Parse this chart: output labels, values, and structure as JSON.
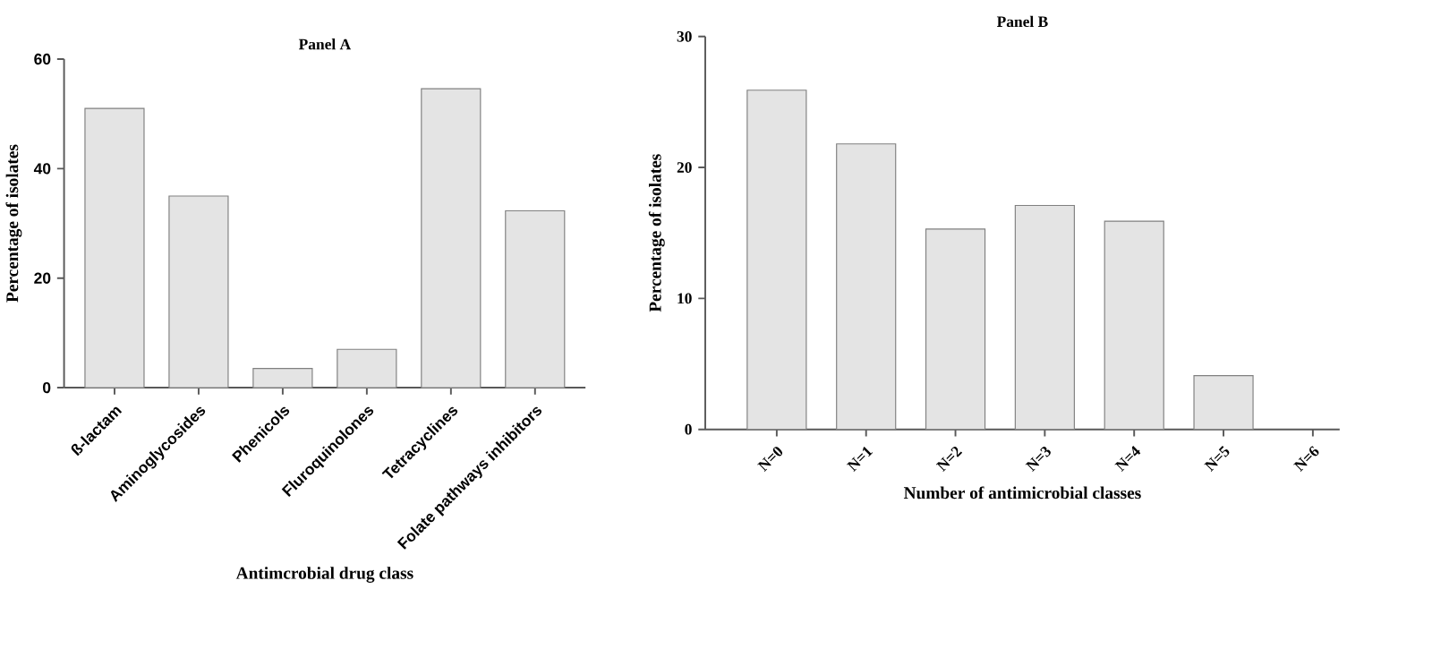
{
  "chart_data": [
    {
      "type": "bar",
      "title": "Panel A",
      "xlabel": "Antimcrobial drug class",
      "ylabel": "Percentage of isolates",
      "categories": [
        "ß-lactam",
        "Aminoglycosides",
        "Phenicols",
        "Fluroquinolones",
        "Tetracyclines",
        "Folate pathways inhibitors"
      ],
      "values": [
        51,
        35,
        3.5,
        7,
        54.6,
        32.3
      ],
      "color": "#e4e4e4",
      "ylim": [
        0,
        60
      ],
      "yticks": [
        0,
        20,
        40,
        60
      ]
    },
    {
      "type": "bar",
      "title": "Panel B",
      "xlabel": "Number of antimicrobial classes",
      "ylabel": "Percentage of isolates",
      "categories": [
        "N=0",
        "N=1",
        "N=2",
        "N=3",
        "N=4",
        "N=5",
        "N=6"
      ],
      "values": [
        25.9,
        21.8,
        15.3,
        17.1,
        15.9,
        4.1,
        0
      ],
      "color": "#e4e4e4",
      "ylim": [
        0,
        30
      ],
      "yticks": [
        0,
        10,
        20,
        30
      ]
    }
  ]
}
